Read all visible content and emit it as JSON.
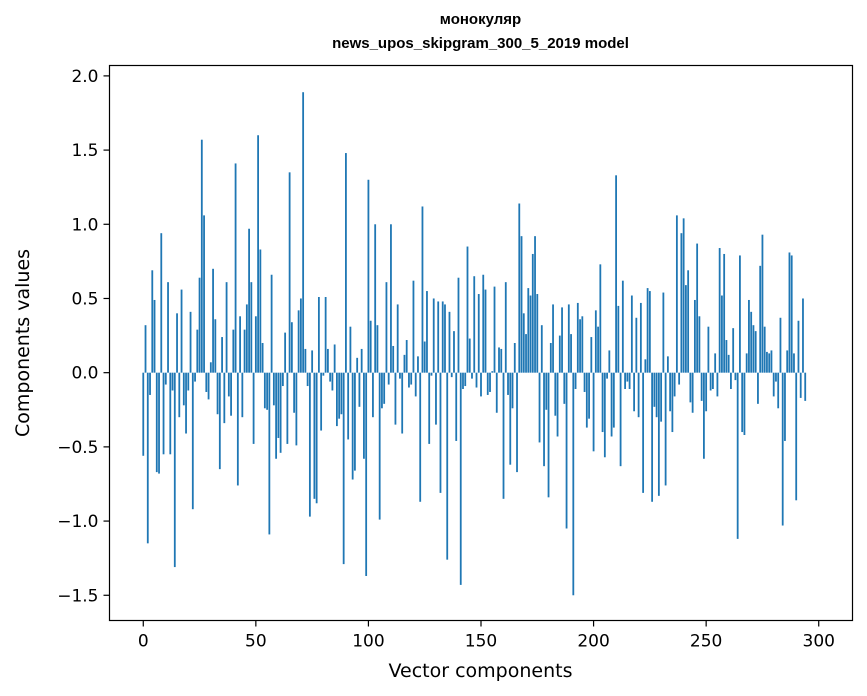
{
  "chart_data": {
    "type": "bar",
    "title": [
      "монокуляр",
      "news_upos_skipgram_300_5_2019 model"
    ],
    "xlabel": "Vector components",
    "ylabel": "Components values",
    "xlim": [
      -15,
      315
    ],
    "ylim": [
      -1.67,
      2.07
    ],
    "xticks": [
      0,
      50,
      100,
      150,
      200,
      250,
      300
    ],
    "xtick_labels": [
      "0",
      "50",
      "100",
      "150",
      "200",
      "250",
      "300"
    ],
    "yticks": [
      -1.5,
      -1.0,
      -0.5,
      0.0,
      0.5,
      1.0,
      1.5,
      2.0
    ],
    "ytick_labels": [
      "−1.5",
      "−1.0",
      "−0.5",
      "0.0",
      "0.5",
      "1.0",
      "1.5",
      "2.0"
    ],
    "bar_color": "#1f77b4",
    "grid": false,
    "values": [
      -0.56,
      0.32,
      -1.15,
      -0.15,
      0.69,
      0.49,
      -0.67,
      -0.68,
      0.94,
      -0.55,
      -0.08,
      0.61,
      -0.55,
      -0.12,
      -1.31,
      0.4,
      -0.3,
      0.56,
      -0.22,
      -0.41,
      -0.12,
      0.41,
      -0.92,
      -0.06,
      0.29,
      0.64,
      1.57,
      1.06,
      -0.13,
      -0.18,
      0.07,
      0.7,
      0.36,
      -0.28,
      -0.65,
      0.24,
      -0.34,
      0.61,
      -0.16,
      -0.29,
      0.29,
      1.41,
      -0.76,
      0.38,
      -0.3,
      0.29,
      0.46,
      0.97,
      0.61,
      -0.48,
      0.38,
      1.6,
      0.83,
      0.2,
      -0.24,
      -0.25,
      -1.09,
      0.66,
      -0.22,
      -0.58,
      -0.44,
      -0.54,
      -0.09,
      0.27,
      -0.48,
      1.35,
      0.34,
      -0.27,
      -0.49,
      0.42,
      0.5,
      1.89,
      0.16,
      -0.09,
      -0.97,
      0.15,
      -0.85,
      -0.88,
      0.51,
      -0.39,
      -0.02,
      0.51,
      0.16,
      -0.06,
      -0.12,
      0.19,
      -0.36,
      -0.31,
      -0.28,
      -1.29,
      1.48,
      -0.45,
      0.31,
      -0.72,
      -0.66,
      0.1,
      -0.23,
      0.16,
      -0.58,
      -1.37,
      1.3,
      0.35,
      -0.3,
      1.0,
      0.32,
      -0.99,
      -0.24,
      -0.21,
      0.61,
      -0.08,
      1.0,
      0.18,
      -0.35,
      0.46,
      -0.04,
      -0.41,
      0.12,
      0.22,
      -0.1,
      -0.08,
      0.62,
      -0.16,
      0.11,
      -0.87,
      1.12,
      0.21,
      0.55,
      -0.48,
      -0.02,
      0.5,
      -0.35,
      0.48,
      -0.81,
      0.48,
      0.46,
      -1.26,
      0.41,
      -0.03,
      0.28,
      -0.46,
      0.64,
      -1.43,
      -0.11,
      -0.09,
      0.85,
      0.23,
      -0.04,
      0.65,
      -0.1,
      0.53,
      -0.16,
      0.66,
      0.56,
      -0.15,
      -0.13,
      0.01,
      0.58,
      -0.27,
      0.17,
      0.16,
      -0.85,
      0.61,
      -0.15,
      -0.62,
      -0.24,
      0.2,
      -0.67,
      1.14,
      0.92,
      0.4,
      0.26,
      0.57,
      0.52,
      0.8,
      0.92,
      0.53,
      -0.47,
      0.32,
      -0.63,
      -0.25,
      -0.84,
      0.2,
      0.46,
      -0.29,
      -0.43,
      0.25,
      0.44,
      -0.21,
      -1.05,
      0.46,
      0.26,
      -1.5,
      -0.11,
      0.47,
      0.36,
      0.38,
      -0.13,
      -0.37,
      -0.31,
      0.24,
      -0.53,
      0.42,
      0.31,
      0.73,
      -0.4,
      -0.57,
      -0.04,
      0.15,
      -0.43,
      -0.37,
      1.33,
      0.45,
      -0.63,
      0.62,
      -0.11,
      -0.06,
      -0.11,
      0.52,
      -0.26,
      0.37,
      -0.3,
      0.47,
      -0.81,
      0.09,
      0.57,
      0.55,
      -0.87,
      -0.23,
      -0.3,
      -0.83,
      -0.33,
      0.54,
      -0.76,
      0.11,
      -0.26,
      -0.4,
      -0.16,
      1.06,
      -0.08,
      0.94,
      1.04,
      0.59,
      0.69,
      -0.2,
      -0.27,
      0.49,
      0.87,
      0.38,
      -0.19,
      -0.58,
      -0.26,
      0.31,
      -0.12,
      -0.11,
      0.13,
      -0.16,
      0.84,
      0.52,
      0.8,
      0.22,
      0.12,
      -0.11,
      0.3,
      -0.05,
      -1.12,
      0.79,
      -0.4,
      -0.42,
      0.13,
      0.49,
      0.41,
      0.32,
      0.28,
      -0.21,
      0.72,
      0.93,
      0.31,
      0.14,
      0.13,
      0.15,
      -0.16,
      -0.06,
      -0.24,
      0.37,
      -1.03,
      -0.46,
      0.15,
      0.81,
      0.79,
      0.13,
      -0.86,
      0.35,
      -0.17,
      0.5,
      -0.19
    ]
  }
}
